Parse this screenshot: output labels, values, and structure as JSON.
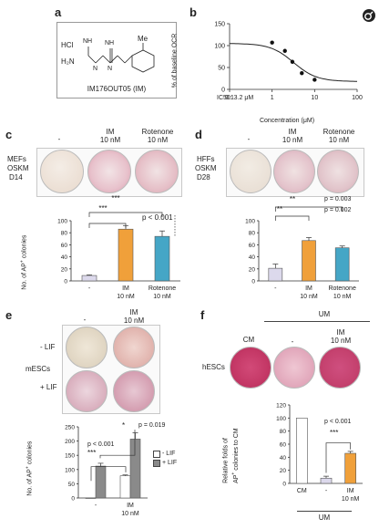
{
  "panels": {
    "a": {
      "label": "a",
      "hcl": "HCl",
      "nh": "NH",
      "h2n": "H₂N",
      "me": "Me",
      "n_h": "N",
      "compound_caption": "IM176OUT05 (IM)"
    },
    "b": {
      "label": "b",
      "ylabel": "% of baseline OCR",
      "xlabel": "Concentration (μM)",
      "ic50": "IC50: 3.2 μM",
      "ticks_y": [
        "150",
        "100",
        "50",
        "0"
      ],
      "ticks_x": [
        "0.1",
        "1",
        "10",
        "100"
      ]
    },
    "c": {
      "label": "c",
      "row_label": [
        "MEFs",
        "OSKM",
        "D14"
      ],
      "col_headers": [
        "-",
        "IM\n10 nM",
        "Rotenone\n10 nM"
      ],
      "sig1": "***",
      "sig2": "***",
      "p_text": "p < 0.001",
      "categories": [
        "-",
        "IM\n10 nM",
        "Rotenone\n10 nM"
      ]
    },
    "d": {
      "label": "d",
      "row_label": [
        "HFFs",
        "OSKM",
        "D28"
      ],
      "col_headers": [
        "-",
        "IM\n10 nM",
        "Rotenone\n10 nM"
      ],
      "sig1": "**",
      "sig2": "**",
      "p1": "p = 0.003",
      "p2": "p = 0.002",
      "categories": [
        "-",
        "IM\n10 nM",
        "Rotenone\n10 nM"
      ]
    },
    "e": {
      "label": "e",
      "col_headers": [
        "-",
        "IM\n10 nM"
      ],
      "row_lifminus": "- LIF",
      "row_lifplus": "+ LIF",
      "cell_label": "mESCs",
      "sig_a": "***",
      "sig_b": "*",
      "p1": "p < 0.001",
      "p2": "p = 0.019",
      "legend_minus": "- LIF",
      "legend_plus": "+ LIF",
      "categories": [
        "-",
        "IM\n10 nM"
      ]
    },
    "f": {
      "label": "f",
      "um_header": "UM",
      "col_headers": [
        "CM",
        "-",
        "IM\n10 nM"
      ],
      "cell_label": "hESCs",
      "sig": "***",
      "p_text": "p < 0.001",
      "categories": [
        "CM",
        "-",
        "IM\n10 nM"
      ],
      "um_under": "UM"
    }
  },
  "chart_data": [
    {
      "type": "line",
      "panel": "b",
      "xlabel": "Concentration (μM)",
      "ylabel": "% of baseline OCR",
      "xscale": "log",
      "xlim": [
        0.1,
        100
      ],
      "ylim": [
        0,
        150
      ],
      "x": [
        1,
        2,
        3,
        5,
        10
      ],
      "y": [
        107,
        88,
        63,
        37,
        22
      ],
      "ic50": 3.2
    },
    {
      "type": "bar",
      "panel": "c",
      "ylabel": "No. of AP⁺ colonies",
      "ylim": [
        0,
        100
      ],
      "yticks": [
        0,
        20,
        40,
        60,
        80,
        100
      ],
      "categories": [
        "-",
        "IM 10 nM",
        "Rotenone 10 nM"
      ],
      "values": [
        9,
        86,
        74
      ],
      "errors": [
        1,
        6,
        9
      ],
      "colors": [
        "#dcd9ec",
        "#f0a03a",
        "#45a6c6"
      ]
    },
    {
      "type": "bar",
      "panel": "d",
      "ylabel": "No. of AP colonies",
      "ylim": [
        0,
        100
      ],
      "yticks": [
        0,
        20,
        40,
        60,
        80,
        100
      ],
      "categories": [
        "-",
        "IM 10 nM",
        "Rotenone 10 nM"
      ],
      "values": [
        21,
        67,
        55
      ],
      "errors": [
        7,
        5,
        3
      ],
      "colors": [
        "#dcd9ec",
        "#f0a03a",
        "#45a6c6"
      ]
    },
    {
      "type": "bar",
      "panel": "e",
      "ylabel": "No. of AP⁺ colonies",
      "ylim": [
        0,
        250
      ],
      "yticks": [
        0,
        50,
        100,
        150,
        200,
        250
      ],
      "categories": [
        "-",
        "IM 10 nM"
      ],
      "series": [
        {
          "name": "- LIF",
          "values": [
            0,
            78
          ],
          "errors": [
            0,
            3
          ],
          "color": "#ffffff"
        },
        {
          "name": "+ LIF",
          "values": [
            112,
            207
          ],
          "errors": [
            10,
            22
          ],
          "color": "#8a8a8a"
        }
      ]
    },
    {
      "type": "bar",
      "panel": "f",
      "ylabel": "Relative folds of AP⁺ colonies to CM",
      "ylim": [
        0,
        120
      ],
      "yticks": [
        0,
        20,
        40,
        60,
        80,
        100,
        120
      ],
      "categories": [
        "CM",
        "-",
        "IM 10 nM"
      ],
      "values": [
        100,
        8,
        46
      ],
      "errors": [
        0,
        3,
        3
      ],
      "colors": [
        "#ffffff",
        "#dcd9ec",
        "#f0a03a"
      ]
    }
  ],
  "icons": {
    "corner": "female-symbol-icon"
  }
}
